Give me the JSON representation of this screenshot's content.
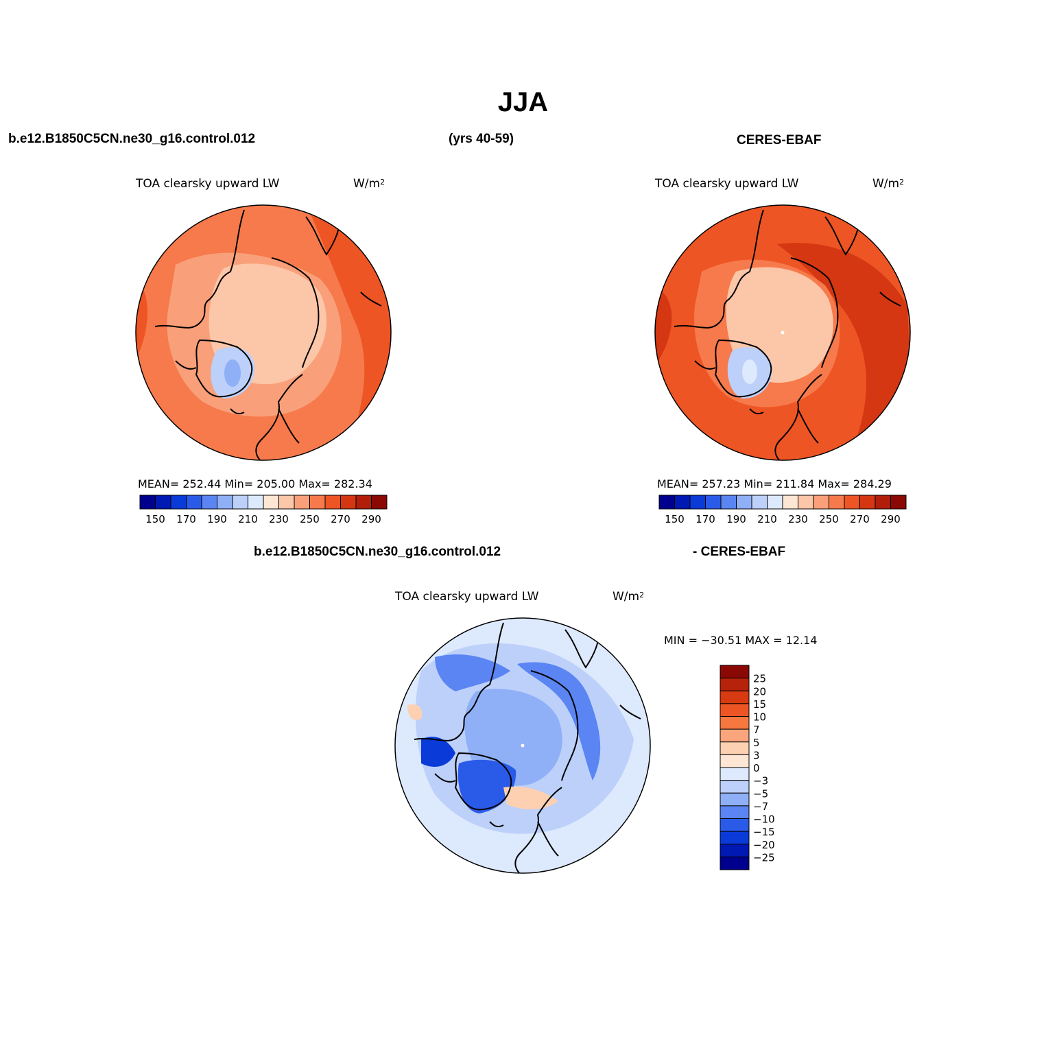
{
  "title": "JJA",
  "top_headers": {
    "left": "b.e12.B1850C5CN.ne30_g16.control.012",
    "middle": "(yrs 40-59)",
    "right": "CERES-EBAF"
  },
  "bottom_headers": {
    "left": "b.e12.B1850C5CN.ne30_g16.control.012",
    "right": "- CERES-EBAF"
  },
  "panels": [
    {
      "id": "model",
      "variable": "TOA clearsky upward LW",
      "units_base": "W/m",
      "units_exp": "2",
      "stats": "MEAN= 252.44   Min= 205.00   Max= 282.34"
    },
    {
      "id": "obs",
      "variable": "TOA clearsky upward LW",
      "units_base": "W/m",
      "units_exp": "2",
      "stats": "MEAN= 257.23   Min= 211.84   Max= 284.29"
    },
    {
      "id": "diff",
      "variable": "TOA clearsky upward LW",
      "units_base": "W/m",
      "units_exp": "2",
      "stats": "MIN = −30.51  MAX =   12.14"
    }
  ],
  "abs_colorbar": {
    "colors": [
      "#00008f",
      "#0019b3",
      "#0a3bd9",
      "#2a5be8",
      "#5a85f2",
      "#8fb0f7",
      "#bcd0fa",
      "#dde9fc",
      "#fde6d4",
      "#fcc6a8",
      "#f9a07a",
      "#f67a4c",
      "#ee5524",
      "#d43712",
      "#b11f0a",
      "#8b0904"
    ],
    "tick_labels": [
      "150",
      "170",
      "190",
      "210",
      "230",
      "250",
      "270",
      "290"
    ]
  },
  "diff_colorbar": {
    "colors": [
      "#8b0904",
      "#b7230a",
      "#d83a12",
      "#ee5524",
      "#f7783f",
      "#faa57c",
      "#fcd0b1",
      "#fde6d4",
      "#dde9fc",
      "#bcd0fa",
      "#8fb0f7",
      "#5a85f2",
      "#2a5be8",
      "#0a3bd9",
      "#0019b3",
      "#00008f"
    ],
    "tick_labels": [
      "25",
      "20",
      "15",
      "10",
      "7",
      "5",
      "3",
      "0",
      "−3",
      "−5",
      "−7",
      "−10",
      "−15",
      "−20",
      "−25"
    ]
  },
  "map_fields": {
    "model": {
      "outer": "#f67a4c",
      "mid": "#ee5524",
      "ring": "#f9a07a",
      "inner": "#fcc6a8",
      "greenland": "#bcd0fa",
      "greenland_core": "#8fb0f7"
    },
    "obs": {
      "outer": "#ee5524",
      "mid": "#d43712",
      "ring": "#f67a4c",
      "inner": "#fcc6a8",
      "greenland": "#bcd0fa",
      "greenland_core": "#dde9fc"
    },
    "diff": {
      "outer": "#dde9fc",
      "mid": "#bcd0fa",
      "ring": "#5a85f2",
      "inner": "#8fb0f7",
      "greenland": "#2a5be8",
      "greenland_core": "#0a3bd9",
      "accent": "#fcd0b1"
    }
  }
}
